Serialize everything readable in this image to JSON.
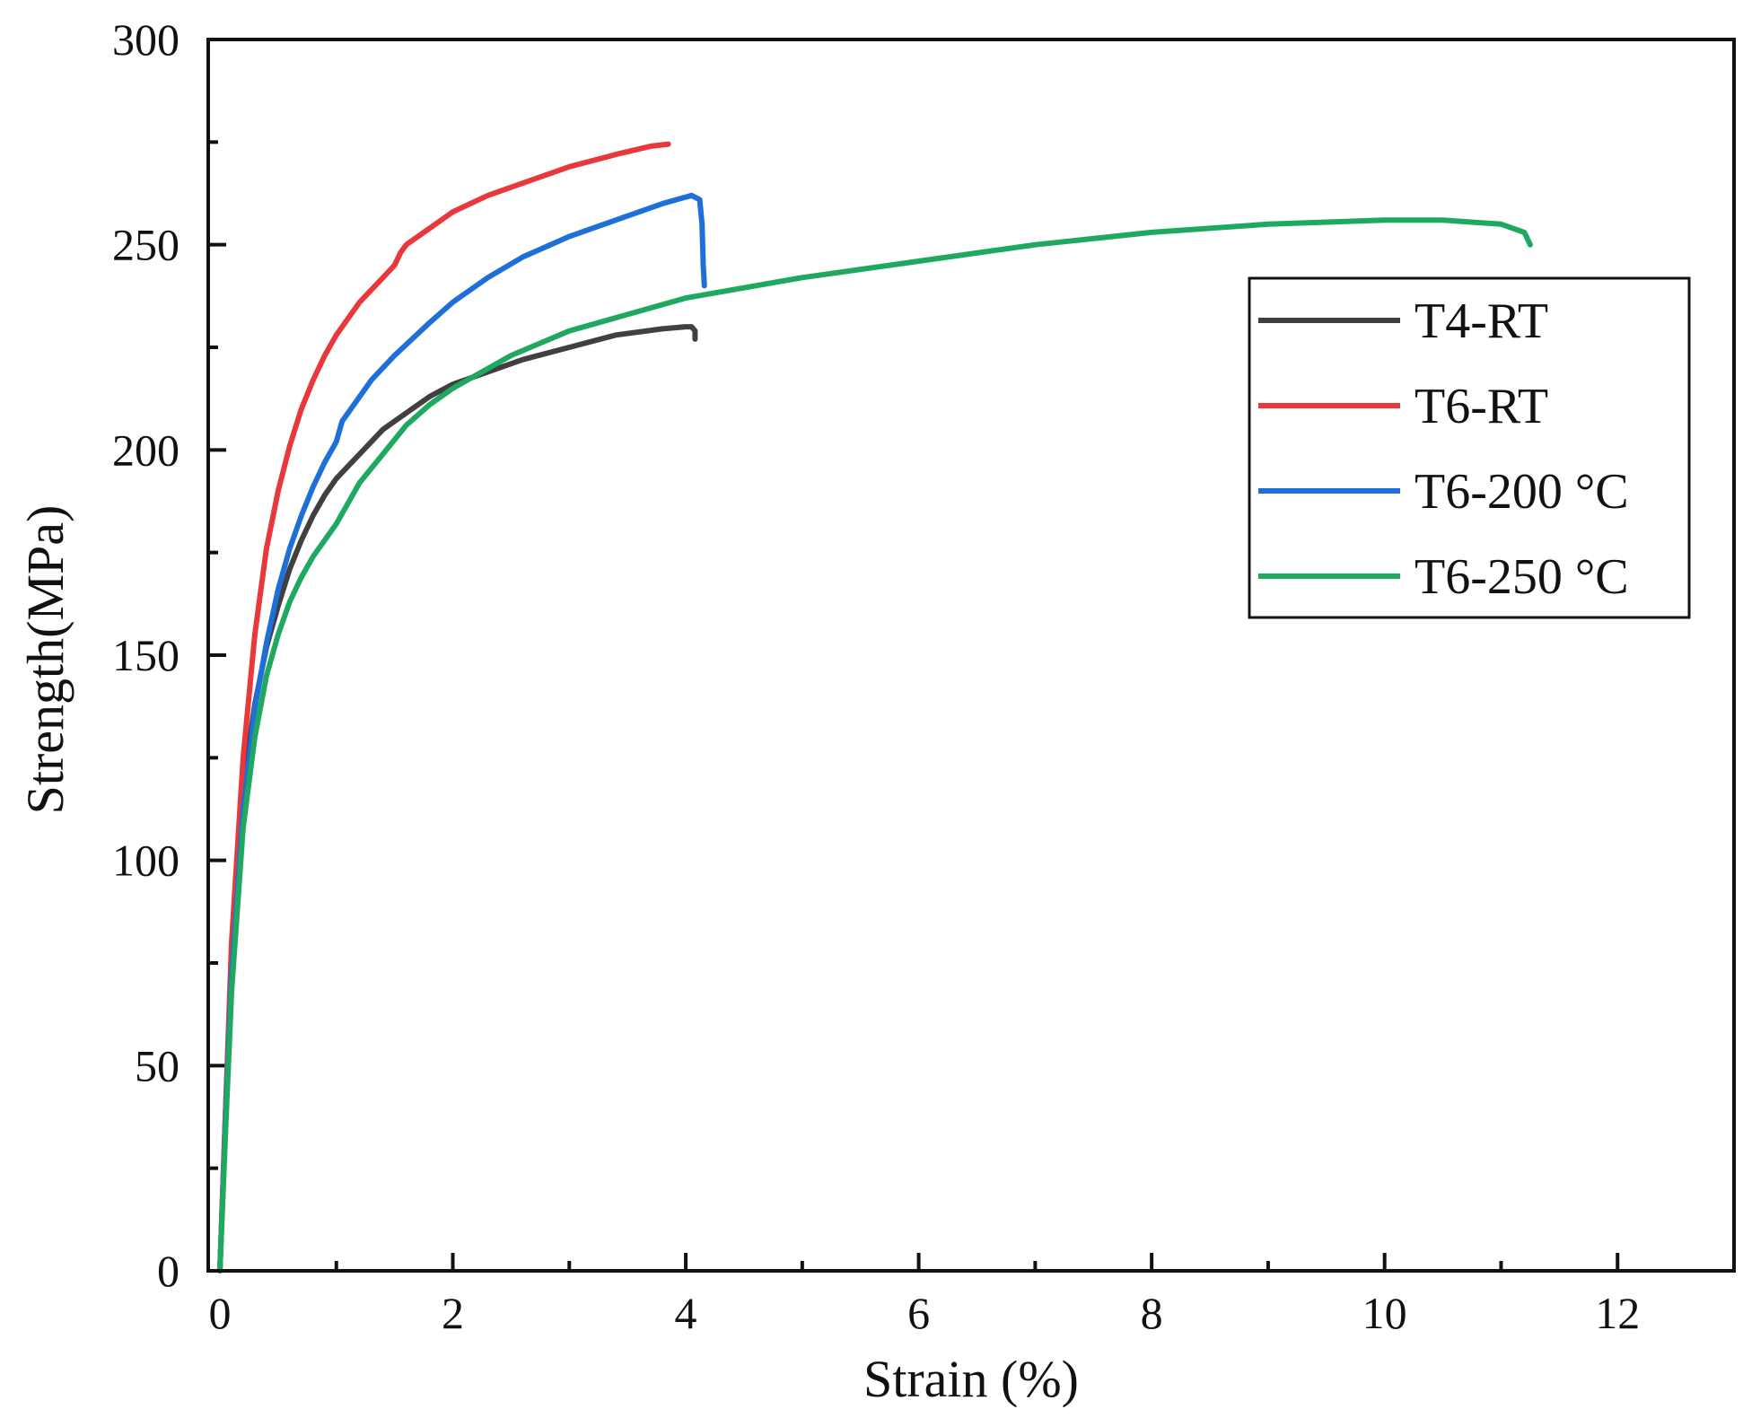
{
  "chart_data": {
    "type": "line",
    "title": "",
    "xlabel": "Strain (%)",
    "ylabel": "Strength(MPa)",
    "xlim": [
      -0.1,
      13
    ],
    "ylim": [
      0,
      300
    ],
    "x_ticks": [
      0,
      2,
      4,
      6,
      8,
      10,
      12
    ],
    "x_tick_labels": [
      "0",
      "2",
      "4",
      "6",
      "8",
      "10",
      "12"
    ],
    "x_minor_ticks": [
      1,
      3,
      5,
      7,
      9,
      11
    ],
    "y_ticks": [
      0,
      50,
      100,
      150,
      200,
      250,
      300
    ],
    "y_tick_labels": [
      "0",
      "50",
      "100",
      "150",
      "200",
      "250",
      "300"
    ],
    "y_minor_ticks": [
      25,
      75,
      125,
      175,
      225,
      275
    ],
    "grid": false,
    "legend_position": "top-right",
    "series": [
      {
        "name": "T4-RT",
        "color": "#404040",
        "x": [
          0.0,
          0.05,
          0.1,
          0.15,
          0.2,
          0.3,
          0.4,
          0.5,
          0.6,
          0.7,
          0.8,
          0.9,
          1.0,
          1.2,
          1.4,
          1.6,
          1.8,
          2.0,
          2.3,
          2.6,
          3.0,
          3.4,
          3.8,
          4.0,
          4.05,
          4.08,
          4.08
        ],
        "y": [
          0,
          40,
          75,
          100,
          118,
          138,
          152,
          162,
          171,
          178,
          184,
          189,
          193,
          199,
          205,
          209,
          213,
          216,
          219,
          222,
          225,
          228,
          229.5,
          230,
          230,
          229,
          227
        ]
      },
      {
        "name": "T6-RT",
        "color": "#e8383b",
        "x": [
          0.0,
          0.05,
          0.1,
          0.2,
          0.3,
          0.4,
          0.5,
          0.6,
          0.7,
          0.8,
          0.9,
          1.0,
          1.2,
          1.4,
          1.5,
          1.55,
          1.6,
          1.8,
          2.0,
          2.3,
          2.6,
          3.0,
          3.4,
          3.7,
          3.85
        ],
        "y": [
          0,
          40,
          80,
          125,
          155,
          176,
          190,
          201,
          210,
          217,
          223,
          228,
          236,
          242,
          245,
          248,
          250,
          254,
          258,
          262,
          265,
          269,
          272,
          274,
          274.5
        ]
      },
      {
        "name": "T6-200 °C",
        "color": "#1f6fdb",
        "x": [
          0.0,
          0.05,
          0.1,
          0.2,
          0.3,
          0.4,
          0.5,
          0.6,
          0.7,
          0.8,
          0.9,
          1.0,
          1.05,
          1.1,
          1.3,
          1.5,
          1.8,
          2.0,
          2.3,
          2.6,
          3.0,
          3.4,
          3.8,
          4.05,
          4.12,
          4.14,
          4.15,
          4.16
        ],
        "y": [
          0,
          38,
          72,
          112,
          137,
          153,
          166,
          176,
          184,
          191,
          197,
          202,
          207,
          209,
          217,
          223,
          231,
          236,
          242,
          247,
          252,
          256,
          260,
          262,
          261,
          255,
          245,
          240
        ]
      },
      {
        "name": "T6-250 °C",
        "color": "#1fa860",
        "x": [
          0.0,
          0.05,
          0.1,
          0.2,
          0.3,
          0.4,
          0.5,
          0.6,
          0.7,
          0.8,
          0.9,
          1.0,
          1.2,
          1.4,
          1.6,
          1.8,
          2.0,
          2.5,
          3.0,
          3.5,
          4.0,
          5.0,
          6.0,
          7.0,
          8.0,
          9.0,
          10.0,
          10.5,
          11.0,
          11.2,
          11.25
        ],
        "y": [
          0,
          35,
          68,
          108,
          130,
          145,
          155,
          163,
          169,
          174,
          178,
          182,
          192,
          199,
          206,
          211,
          215,
          223,
          229,
          233,
          237,
          242,
          246,
          250,
          253,
          255,
          256,
          256,
          255,
          253,
          250
        ]
      }
    ]
  }
}
